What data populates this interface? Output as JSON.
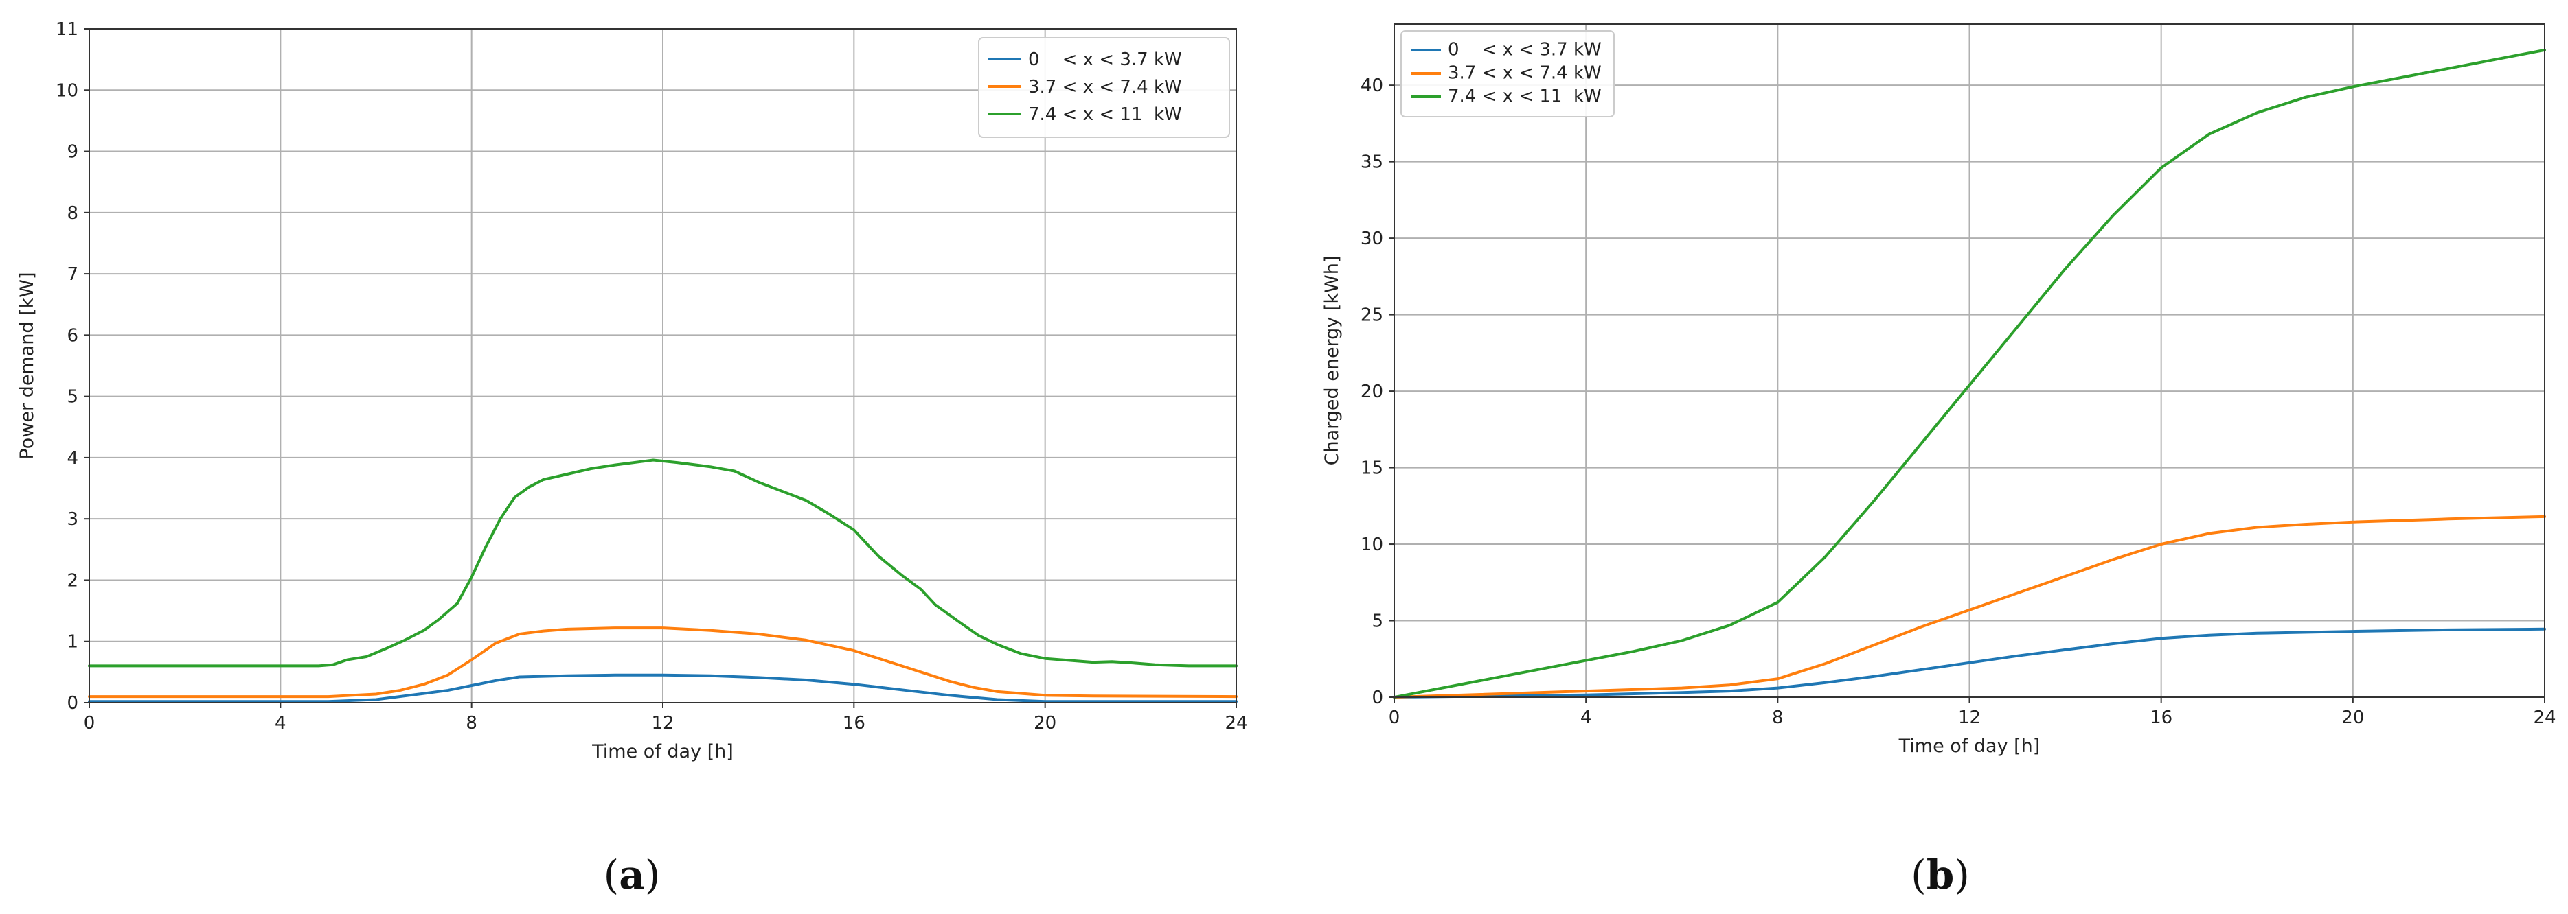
{
  "chart_data": [
    {
      "type": "line",
      "panel_label": "a",
      "xlabel": "Time of day [h]",
      "ylabel": "Power demand [kW]",
      "xlim": [
        0,
        24
      ],
      "ylim": [
        0,
        11
      ],
      "xticks": [
        0,
        4,
        8,
        12,
        16,
        20,
        24
      ],
      "yticks": [
        0,
        1,
        2,
        3,
        4,
        5,
        6,
        7,
        8,
        9,
        10,
        11
      ],
      "grid": true,
      "legend": "top-right",
      "series": [
        {
          "name": "0    < x < 3.7 kW",
          "color": "#1f77b4",
          "points": [
            [
              0,
              0.02
            ],
            [
              5,
              0.02
            ],
            [
              6,
              0.05
            ],
            [
              7,
              0.15
            ],
            [
              7.5,
              0.2
            ],
            [
              8,
              0.28
            ],
            [
              8.5,
              0.36
            ],
            [
              9,
              0.42
            ],
            [
              10,
              0.44
            ],
            [
              11,
              0.45
            ],
            [
              12,
              0.45
            ],
            [
              13,
              0.44
            ],
            [
              14,
              0.41
            ],
            [
              15,
              0.37
            ],
            [
              16,
              0.3
            ],
            [
              17,
              0.21
            ],
            [
              18,
              0.12
            ],
            [
              19,
              0.05
            ],
            [
              20,
              0.02
            ],
            [
              24,
              0.02
            ]
          ]
        },
        {
          "name": "3.7 < x < 7.4 kW",
          "color": "#ff7f0e",
          "points": [
            [
              0,
              0.1
            ],
            [
              5,
              0.1
            ],
            [
              6,
              0.14
            ],
            [
              6.5,
              0.2
            ],
            [
              7,
              0.3
            ],
            [
              7.5,
              0.45
            ],
            [
              8,
              0.7
            ],
            [
              8.5,
              0.97
            ],
            [
              9,
              1.12
            ],
            [
              9.5,
              1.17
            ],
            [
              10,
              1.2
            ],
            [
              11,
              1.22
            ],
            [
              12,
              1.22
            ],
            [
              13,
              1.18
            ],
            [
              14,
              1.12
            ],
            [
              15,
              1.02
            ],
            [
              16,
              0.85
            ],
            [
              17,
              0.6
            ],
            [
              18,
              0.35
            ],
            [
              18.5,
              0.25
            ],
            [
              19,
              0.18
            ],
            [
              20,
              0.12
            ],
            [
              21,
              0.11
            ],
            [
              24,
              0.1
            ]
          ]
        },
        {
          "name": "7.4 < x < 11  kW",
          "color": "#2ca02c",
          "points": [
            [
              0,
              0.6
            ],
            [
              4.8,
              0.6
            ],
            [
              5.1,
              0.62
            ],
            [
              5.4,
              0.7
            ],
            [
              5.8,
              0.75
            ],
            [
              6.2,
              0.88
            ],
            [
              6.6,
              1.02
            ],
            [
              7,
              1.18
            ],
            [
              7.3,
              1.35
            ],
            [
              7.7,
              1.62
            ],
            [
              8,
              2.05
            ],
            [
              8.3,
              2.55
            ],
            [
              8.6,
              3.0
            ],
            [
              8.9,
              3.35
            ],
            [
              9.2,
              3.52
            ],
            [
              9.5,
              3.64
            ],
            [
              10,
              3.73
            ],
            [
              10.5,
              3.82
            ],
            [
              11,
              3.88
            ],
            [
              11.5,
              3.93
            ],
            [
              11.8,
              3.96
            ],
            [
              12.3,
              3.92
            ],
            [
              13,
              3.85
            ],
            [
              13.5,
              3.78
            ],
            [
              14,
              3.6
            ],
            [
              14.5,
              3.45
            ],
            [
              15,
              3.3
            ],
            [
              15.5,
              3.07
            ],
            [
              16,
              2.82
            ],
            [
              16.5,
              2.4
            ],
            [
              17,
              2.08
            ],
            [
              17.4,
              1.85
            ],
            [
              17.7,
              1.6
            ],
            [
              18.2,
              1.32
            ],
            [
              18.6,
              1.1
            ],
            [
              19,
              0.95
            ],
            [
              19.5,
              0.8
            ],
            [
              20,
              0.72
            ],
            [
              20.5,
              0.69
            ],
            [
              21,
              0.66
            ],
            [
              21.4,
              0.67
            ],
            [
              21.8,
              0.65
            ],
            [
              22.3,
              0.62
            ],
            [
              23,
              0.6
            ],
            [
              24,
              0.6
            ]
          ]
        }
      ]
    },
    {
      "type": "line",
      "panel_label": "b",
      "xlabel": "Time of day [h]",
      "ylabel": "Charged energy [kWh]",
      "xlim": [
        0,
        24
      ],
      "ylim": [
        0,
        44
      ],
      "xticks": [
        0,
        4,
        8,
        12,
        16,
        20,
        24
      ],
      "yticks": [
        0,
        5,
        10,
        15,
        20,
        25,
        30,
        35,
        40
      ],
      "grid": true,
      "legend": "top-left",
      "series": [
        {
          "name": "0    < x < 3.7 kW",
          "color": "#1f77b4",
          "points": [
            [
              0,
              0
            ],
            [
              4,
              0.15
            ],
            [
              6,
              0.3
            ],
            [
              7,
              0.4
            ],
            [
              8,
              0.6
            ],
            [
              9,
              0.95
            ],
            [
              10,
              1.35
            ],
            [
              11,
              1.8
            ],
            [
              12,
              2.25
            ],
            [
              13,
              2.7
            ],
            [
              14,
              3.1
            ],
            [
              15,
              3.5
            ],
            [
              16,
              3.85
            ],
            [
              17,
              4.05
            ],
            [
              18,
              4.18
            ],
            [
              20,
              4.3
            ],
            [
              22,
              4.4
            ],
            [
              24,
              4.45
            ]
          ]
        },
        {
          "name": "3.7 < x < 7.4 kW",
          "color": "#ff7f0e",
          "points": [
            [
              0,
              0
            ],
            [
              4,
              0.4
            ],
            [
              6,
              0.6
            ],
            [
              7,
              0.8
            ],
            [
              8,
              1.2
            ],
            [
              9,
              2.2
            ],
            [
              10,
              3.4
            ],
            [
              11,
              4.6
            ],
            [
              12,
              5.7
            ],
            [
              13,
              6.8
            ],
            [
              14,
              7.9
            ],
            [
              15,
              9.0
            ],
            [
              16,
              10.0
            ],
            [
              17,
              10.7
            ],
            [
              18,
              11.1
            ],
            [
              19,
              11.3
            ],
            [
              20,
              11.45
            ],
            [
              22,
              11.65
            ],
            [
              24,
              11.8
            ]
          ]
        },
        {
          "name": "7.4 < x < 11  kW",
          "color": "#2ca02c",
          "points": [
            [
              0,
              0
            ],
            [
              2,
              1.2
            ],
            [
              4,
              2.4
            ],
            [
              5,
              3.0
            ],
            [
              6,
              3.7
            ],
            [
              7,
              4.7
            ],
            [
              8,
              6.2
            ],
            [
              9,
              9.2
            ],
            [
              10,
              12.8
            ],
            [
              11,
              16.6
            ],
            [
              12,
              20.4
            ],
            [
              13,
              24.2
            ],
            [
              14,
              28.0
            ],
            [
              15,
              31.5
            ],
            [
              16,
              34.6
            ],
            [
              17,
              36.8
            ],
            [
              18,
              38.2
            ],
            [
              19,
              39.2
            ],
            [
              20,
              39.9
            ],
            [
              22,
              41.1
            ],
            [
              24,
              42.3
            ]
          ]
        }
      ]
    }
  ]
}
